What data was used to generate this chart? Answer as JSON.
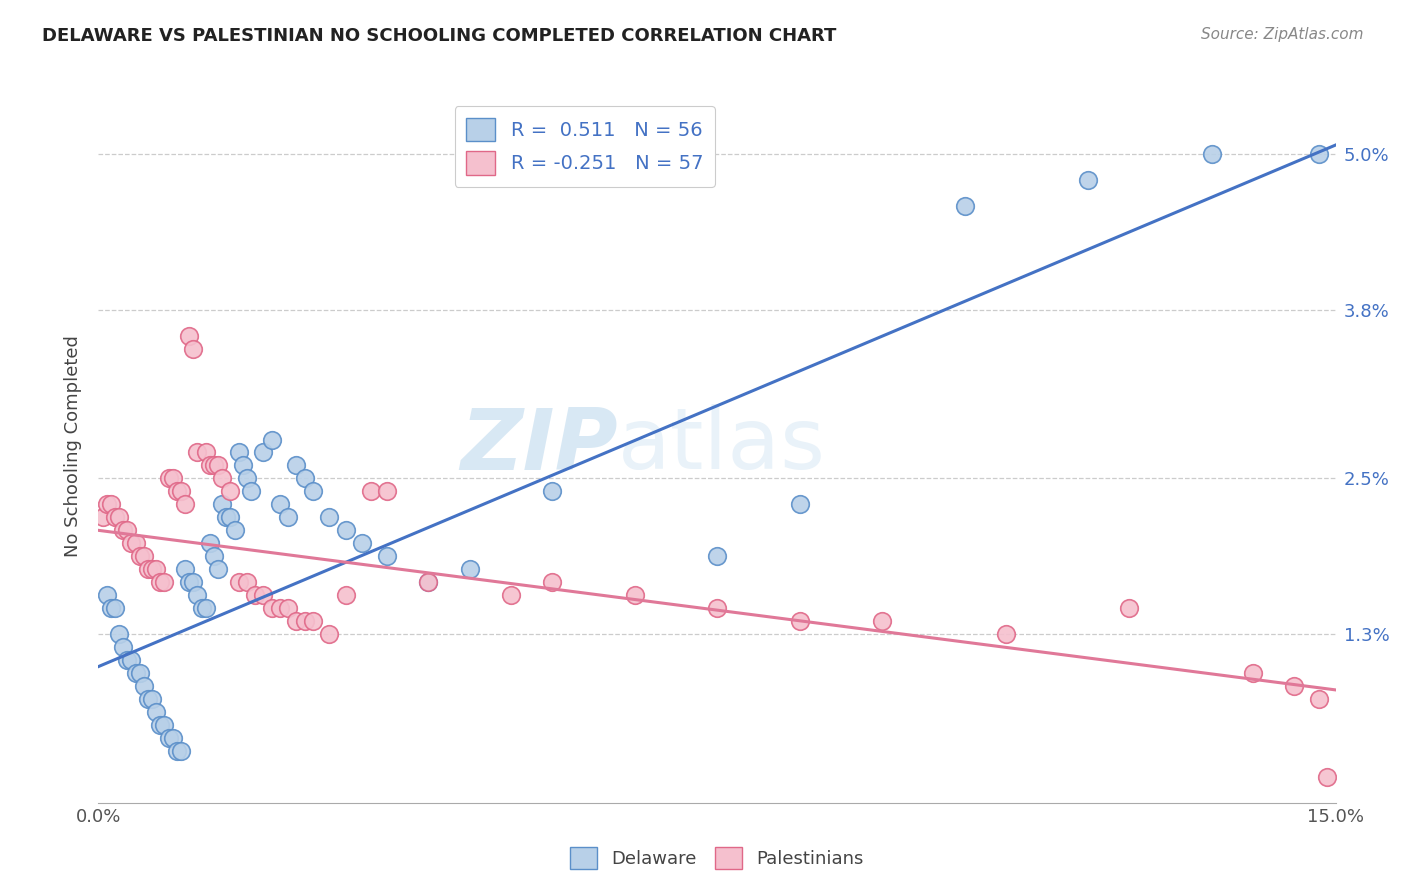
{
  "title": "DELAWARE VS PALESTINIAN NO SCHOOLING COMPLETED CORRELATION CHART",
  "source": "Source: ZipAtlas.com",
  "ylabel": "No Schooling Completed",
  "ytick_labels": [
    "1.3%",
    "2.5%",
    "3.8%",
    "5.0%"
  ],
  "ytick_values": [
    1.3,
    2.5,
    3.8,
    5.0
  ],
  "xlim": [
    0.0,
    15.0
  ],
  "ylim": [
    0.0,
    5.5
  ],
  "legend_r_delaware": "0.511",
  "legend_n_delaware": "56",
  "legend_r_palestinians": "-0.251",
  "legend_n_palestinians": "57",
  "legend_labels": [
    "Delaware",
    "Palestinians"
  ],
  "delaware_color": "#b8d0e8",
  "delaware_edge_color": "#5b8fc9",
  "palestinians_color": "#f5c0ce",
  "palestinians_edge_color": "#e06888",
  "delaware_line_color": "#4472c4",
  "palestinians_line_color": "#e07898",
  "watermark_zip": "ZIP",
  "watermark_atlas": "atlas",
  "background_color": "#ffffff",
  "del_line_slope": 0.268,
  "del_line_intercept": 1.05,
  "pal_line_slope": -0.082,
  "pal_line_intercept": 2.1,
  "delaware_x": [
    0.1,
    0.15,
    0.2,
    0.25,
    0.3,
    0.35,
    0.4,
    0.45,
    0.5,
    0.55,
    0.6,
    0.65,
    0.7,
    0.75,
    0.8,
    0.85,
    0.9,
    0.95,
    1.0,
    1.05,
    1.1,
    1.15,
    1.2,
    1.25,
    1.3,
    1.35,
    1.4,
    1.45,
    1.5,
    1.55,
    1.6,
    1.65,
    1.7,
    1.75,
    1.8,
    1.85,
    2.0,
    2.1,
    2.2,
    2.3,
    2.4,
    2.5,
    2.6,
    2.8,
    3.0,
    3.2,
    3.5,
    4.0,
    4.5,
    5.5,
    7.5,
    8.5,
    10.5,
    12.0,
    13.5,
    14.8
  ],
  "delaware_y": [
    1.6,
    1.5,
    1.5,
    1.3,
    1.2,
    1.1,
    1.1,
    1.0,
    1.0,
    0.9,
    0.8,
    0.8,
    0.7,
    0.6,
    0.6,
    0.5,
    0.5,
    0.4,
    0.4,
    1.8,
    1.7,
    1.7,
    1.6,
    1.5,
    1.5,
    2.0,
    1.9,
    1.8,
    2.3,
    2.2,
    2.2,
    2.1,
    2.7,
    2.6,
    2.5,
    2.4,
    2.7,
    2.8,
    2.3,
    2.2,
    2.6,
    2.5,
    2.4,
    2.2,
    2.1,
    2.0,
    1.9,
    1.7,
    1.8,
    2.4,
    1.9,
    2.3,
    4.6,
    4.8,
    5.0,
    5.0
  ],
  "palestinians_x": [
    0.05,
    0.1,
    0.15,
    0.2,
    0.25,
    0.3,
    0.35,
    0.4,
    0.45,
    0.5,
    0.55,
    0.6,
    0.65,
    0.7,
    0.75,
    0.8,
    0.85,
    0.9,
    0.95,
    1.0,
    1.05,
    1.1,
    1.15,
    1.2,
    1.3,
    1.35,
    1.4,
    1.45,
    1.5,
    1.6,
    1.7,
    1.8,
    1.9,
    2.0,
    2.1,
    2.2,
    2.3,
    2.4,
    2.5,
    2.6,
    2.8,
    3.0,
    3.3,
    3.5,
    4.0,
    5.0,
    5.5,
    6.5,
    7.5,
    8.5,
    9.5,
    11.0,
    12.5,
    14.0,
    14.5,
    14.8,
    14.9
  ],
  "palestinians_y": [
    2.2,
    2.3,
    2.3,
    2.2,
    2.2,
    2.1,
    2.1,
    2.0,
    2.0,
    1.9,
    1.9,
    1.8,
    1.8,
    1.8,
    1.7,
    1.7,
    2.5,
    2.5,
    2.4,
    2.4,
    2.3,
    3.6,
    3.5,
    2.7,
    2.7,
    2.6,
    2.6,
    2.6,
    2.5,
    2.4,
    1.7,
    1.7,
    1.6,
    1.6,
    1.5,
    1.5,
    1.5,
    1.4,
    1.4,
    1.4,
    1.3,
    1.6,
    2.4,
    2.4,
    1.7,
    1.6,
    1.7,
    1.6,
    1.5,
    1.4,
    1.4,
    1.3,
    1.5,
    1.0,
    0.9,
    0.8,
    0.2
  ]
}
